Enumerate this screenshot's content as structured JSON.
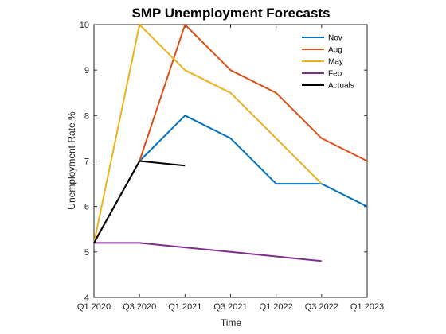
{
  "chart_data": {
    "type": "line",
    "title": "SMP Unemployment Forecasts",
    "xlabel": "Time",
    "ylabel": "Unemployment Rate %",
    "x_ticks": [
      "Q1 2020",
      "Q3 2020",
      "Q1 2021",
      "Q3 2021",
      "Q1 2022",
      "Q3 2022",
      "Q1 2023"
    ],
    "y_ticks": [
      "4",
      "5",
      "6",
      "7",
      "8",
      "9",
      "10"
    ],
    "ylim": [
      4,
      10
    ],
    "xlim": [
      "Q1 2020",
      "Q1 2023"
    ],
    "grid": false,
    "legend_position": "top-right",
    "series": [
      {
        "name": "Nov",
        "color": "#0072BD",
        "x": [
          "Q1 2020",
          "Q3 2020",
          "Q1 2021",
          "Q3 2021",
          "Q1 2022",
          "Q3 2022",
          "Q1 2023"
        ],
        "values": [
          5.2,
          7.0,
          8.0,
          7.5,
          6.5,
          6.5,
          6.0
        ]
      },
      {
        "name": "Aug",
        "color": "#D95319",
        "x": [
          "Q1 2020",
          "Q3 2020",
          "Q1 2021",
          "Q3 2021",
          "Q1 2022",
          "Q3 2022",
          "Q1 2023"
        ],
        "values": [
          5.2,
          7.0,
          10.0,
          9.0,
          8.5,
          7.5,
          7.0
        ]
      },
      {
        "name": "May",
        "color": "#EDB120",
        "x": [
          "Q1 2020",
          "Q3 2020",
          "Q1 2021",
          "Q3 2021",
          "Q1 2022",
          "Q3 2022"
        ],
        "values": [
          5.2,
          10.0,
          9.0,
          8.5,
          7.5,
          6.5
        ]
      },
      {
        "name": "Feb",
        "color": "#7E2F8E",
        "x": [
          "Q1 2020",
          "Q3 2020",
          "Q1 2021",
          "Q3 2021",
          "Q1 2022",
          "Q3 2022"
        ],
        "values": [
          5.2,
          5.2,
          5.1,
          5.0,
          4.9,
          4.8
        ]
      },
      {
        "name": "Actuals",
        "color": "#000000",
        "x": [
          "Q1 2020",
          "Q3 2020",
          "Q1 2021"
        ],
        "values": [
          5.2,
          7.0,
          6.9
        ]
      }
    ]
  }
}
